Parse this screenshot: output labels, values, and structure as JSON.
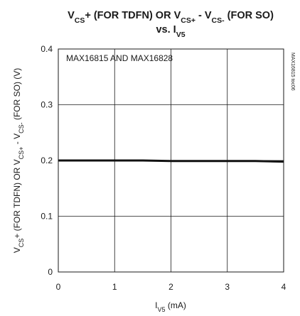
{
  "chart_data": {
    "type": "line",
    "title": {
      "line1": [
        {
          "t": "V",
          "sub": false
        },
        {
          "t": "CS",
          "sub": true
        },
        {
          "t": "+ (FOR TDFN) OR V",
          "sub": false
        },
        {
          "t": "CS+",
          "sub": true
        },
        {
          "t": " - V",
          "sub": false
        },
        {
          "t": "CS-",
          "sub": true
        },
        {
          "t": " (FOR SO)",
          "sub": false
        }
      ],
      "line2": [
        {
          "t": "vs. I",
          "sub": false
        },
        {
          "t": "V5",
          "sub": true
        }
      ]
    },
    "xlabel": [
      {
        "t": "I",
        "sub": false
      },
      {
        "t": "V5",
        "sub": true
      },
      {
        "t": " (mA)",
        "sub": false
      }
    ],
    "ylabel": [
      {
        "t": "V",
        "sub": false
      },
      {
        "t": "CS",
        "sub": true
      },
      {
        "t": "+ (FOR TDFN) OR V",
        "sub": false
      },
      {
        "t": "CS+",
        "sub": true
      },
      {
        "t": " - V",
        "sub": false
      },
      {
        "t": "CS-",
        "sub": true
      },
      {
        "t": " (FOR SO) (V)",
        "sub": false
      }
    ],
    "xlim": [
      0,
      4
    ],
    "ylim": [
      0,
      0.4
    ],
    "xticks": [
      "0",
      "1",
      "2",
      "3",
      "4"
    ],
    "yticks": [
      "0",
      "0.1",
      "0.2",
      "0.3",
      "0.4"
    ],
    "grid": true,
    "annotation": "MAX16815 AND MAX16828",
    "figure_code": "MAX16815 toc06",
    "series": [
      {
        "x": [
          0,
          0.5,
          1,
          1.5,
          2,
          2.5,
          3,
          3.5,
          4
        ],
        "y": [
          0.2,
          0.2,
          0.2,
          0.2,
          0.199,
          0.199,
          0.199,
          0.199,
          0.198
        ]
      }
    ]
  }
}
